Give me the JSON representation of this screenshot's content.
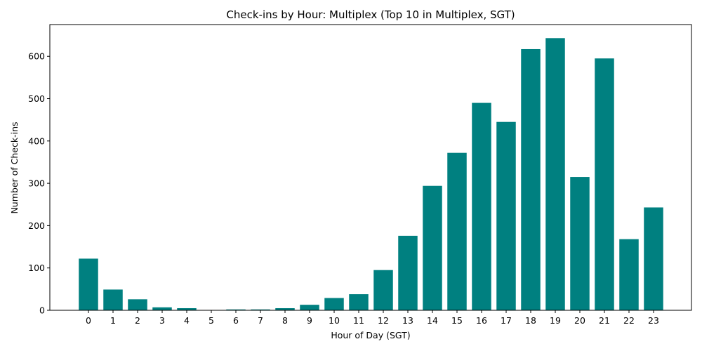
{
  "chart_data": {
    "type": "bar",
    "title": "Check-ins by Hour: Multiplex (Top 10 in Multiplex, SGT)",
    "xlabel": "Hour of Day (SGT)",
    "ylabel": "Number of Check-ins",
    "categories": [
      "0",
      "1",
      "2",
      "3",
      "4",
      "5",
      "6",
      "7",
      "8",
      "9",
      "10",
      "11",
      "12",
      "13",
      "14",
      "15",
      "16",
      "17",
      "18",
      "19",
      "20",
      "21",
      "22",
      "23"
    ],
    "values": [
      122,
      49,
      26,
      7,
      5,
      0,
      2,
      2,
      5,
      13,
      29,
      38,
      95,
      176,
      294,
      372,
      490,
      445,
      617,
      643,
      315,
      595,
      168,
      243
    ],
    "yticks": [
      0,
      100,
      200,
      300,
      400,
      500,
      600
    ],
    "ylim": [
      0,
      675
    ],
    "grid": false,
    "bar_color": "#008080"
  }
}
